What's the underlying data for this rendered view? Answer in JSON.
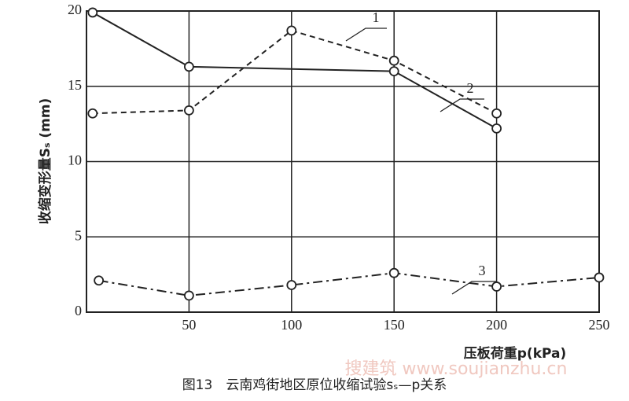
{
  "chart_data": {
    "type": "line",
    "y_label": "收缩变形量Sₛ (mm)",
    "x_label": "压板荷重p(kPa)",
    "caption": "图13　云南鸡街地区原位收缩试验sₛ—p关系",
    "watermark": "搜建筑 www.soujianzhu.cn",
    "xlim": [
      0,
      250
    ],
    "xticks": [
      50,
      100,
      150,
      200,
      250
    ],
    "ylim": [
      0,
      20
    ],
    "yticks": [
      0,
      5,
      10,
      15,
      20
    ],
    "grid": true,
    "color": "#222222",
    "series": [
      {
        "name": "1",
        "style": "dashed",
        "marker_x": [
          3,
          50,
          100,
          150,
          200
        ],
        "x": [
          3,
          50,
          100,
          150,
          200
        ],
        "values": [
          13.2,
          13.4,
          18.7,
          16.7,
          13.2
        ]
      },
      {
        "name": "2",
        "style": "solid",
        "x": [
          3,
          50,
          150,
          200
        ],
        "values": [
          19.9,
          16.3,
          16.0,
          12.2
        ]
      },
      {
        "name": "3",
        "style": "dashdot",
        "x": [
          6,
          50,
          100,
          150,
          200,
          250
        ],
        "values": [
          2.1,
          1.1,
          1.8,
          2.6,
          1.7,
          2.3
        ]
      }
    ]
  }
}
